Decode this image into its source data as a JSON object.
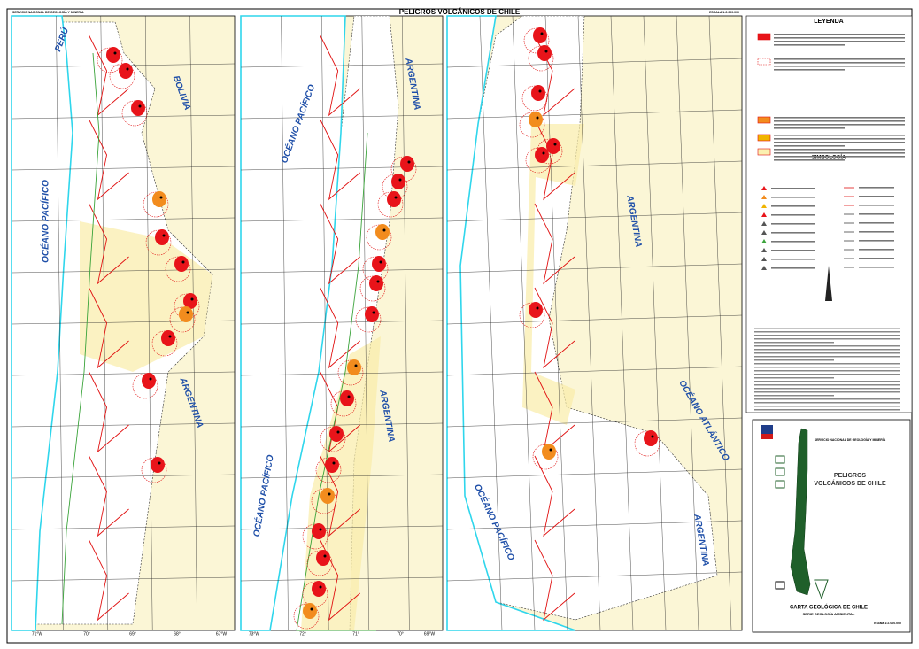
{
  "header": {
    "title": "PELIGROS VOLCÁNICOS DE CHILE",
    "agency": "SERVICIO NACIONAL DE GEOLOGÍA Y MINERÍA",
    "scale": "ESCALA 1:2.000.000"
  },
  "panels": [
    {
      "labels": [
        "PERÚ",
        "BOLIVIA",
        "OCÉANO PACÍFICO",
        "ARGENTINA"
      ],
      "lon_ticks": [
        "71°W",
        "70°",
        "69°",
        "68°",
        "67°W"
      ]
    },
    {
      "labels": [
        "OCÉANO PACÍFICO",
        "ARGENTINA",
        "ARGENTINA",
        "OCÉANO PACÍFICO"
      ],
      "lon_ticks": [
        "73°W",
        "72°",
        "71°",
        "70°",
        "69°W"
      ]
    },
    {
      "labels": [
        "ARGENTINA",
        "OCÉANO ATLÁNTICO",
        "OCÉANO PACÍFICO",
        "ARGENTINA"
      ]
    }
  ],
  "legend": {
    "title": "LEYENDA",
    "symbology_title": "SIMBOLOGÍA"
  },
  "cartouche": {
    "agency": "SERVICIO NACIONAL DE GEOLOGÍA Y MINERÍA",
    "map_title_1": "PELIGROS",
    "map_title_2": "VOLCÁNICOS DE CHILE",
    "series_1": "CARTA GEOLÓGICA DE CHILE",
    "series_2": "SERIE GEOLOGÍA AMBIENTAL",
    "scale": "Escala 1:2.000.000"
  }
}
